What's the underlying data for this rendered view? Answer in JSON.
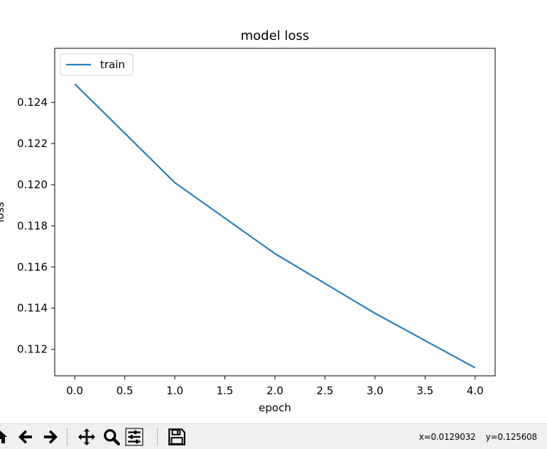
{
  "chart_data": {
    "type": "line",
    "title": "model loss",
    "xlabel": "epoch",
    "ylabel": "loss",
    "x": [
      0,
      1,
      2,
      3,
      4
    ],
    "series": [
      {
        "name": "train",
        "color": "#2c7fb8",
        "values": [
          0.1249,
          0.1201,
          0.11665,
          0.11375,
          0.1111
        ]
      }
    ],
    "xlim": [
      -0.2,
      4.2
    ],
    "ylim": [
      0.11071,
      0.12663
    ],
    "xticks": [
      "0.0",
      "0.5",
      "1.0",
      "1.5",
      "2.0",
      "2.5",
      "3.0",
      "3.5",
      "4.0"
    ],
    "yticks": [
      "0.112",
      "0.114",
      "0.116",
      "0.118",
      "0.120",
      "0.122",
      "0.124"
    ],
    "legend_position": "upper-left",
    "grid": false
  },
  "toolbar": {
    "buttons": [
      {
        "name": "home-icon"
      },
      {
        "name": "back-arrow-icon"
      },
      {
        "name": "forward-arrow-icon"
      },
      {
        "name": "pan-icon"
      },
      {
        "name": "zoom-icon"
      },
      {
        "name": "subplots-config-icon"
      },
      {
        "name": "save-icon"
      }
    ],
    "coords": {
      "x": "x=0.0129032",
      "y": "y=0.125608"
    }
  }
}
